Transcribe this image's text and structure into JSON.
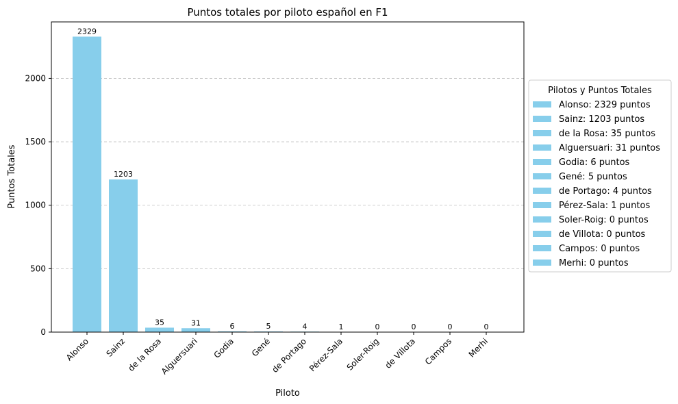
{
  "chart_data": {
    "type": "bar",
    "title": "Puntos totales por piloto español en F1",
    "xlabel": "Piloto",
    "ylabel": "Puntos Totales",
    "categories": [
      "Alonso",
      "Sainz",
      "de la Rosa",
      "Alguersuari",
      "Godia",
      "Gené",
      "de Portago",
      "Pérez-Sala",
      "Soler-Roig",
      "de Villota",
      "Campos",
      "Merhi"
    ],
    "values": [
      2329,
      1203,
      35,
      31,
      6,
      5,
      4,
      1,
      0,
      0,
      0,
      0
    ],
    "ylim": [
      0,
      2445
    ],
    "yticks": [
      0,
      500,
      1000,
      1500,
      2000
    ],
    "grid": "y-dashed",
    "bar_color": "#87ceeb",
    "legend": {
      "title": "Pilotos y Puntos Totales",
      "placement": "right",
      "entries": [
        "Alonso: 2329 puntos",
        "Sainz: 1203 puntos",
        "de la Rosa: 35 puntos",
        "Alguersuari: 31 puntos",
        "Godia: 6 puntos",
        "Gené: 5 puntos",
        "de Portago: 4 puntos",
        "Pérez-Sala: 1 puntos",
        "Soler-Roig: 0 puntos",
        "de Villota: 0 puntos",
        "Campos: 0 puntos",
        "Merhi: 0 puntos"
      ]
    }
  }
}
